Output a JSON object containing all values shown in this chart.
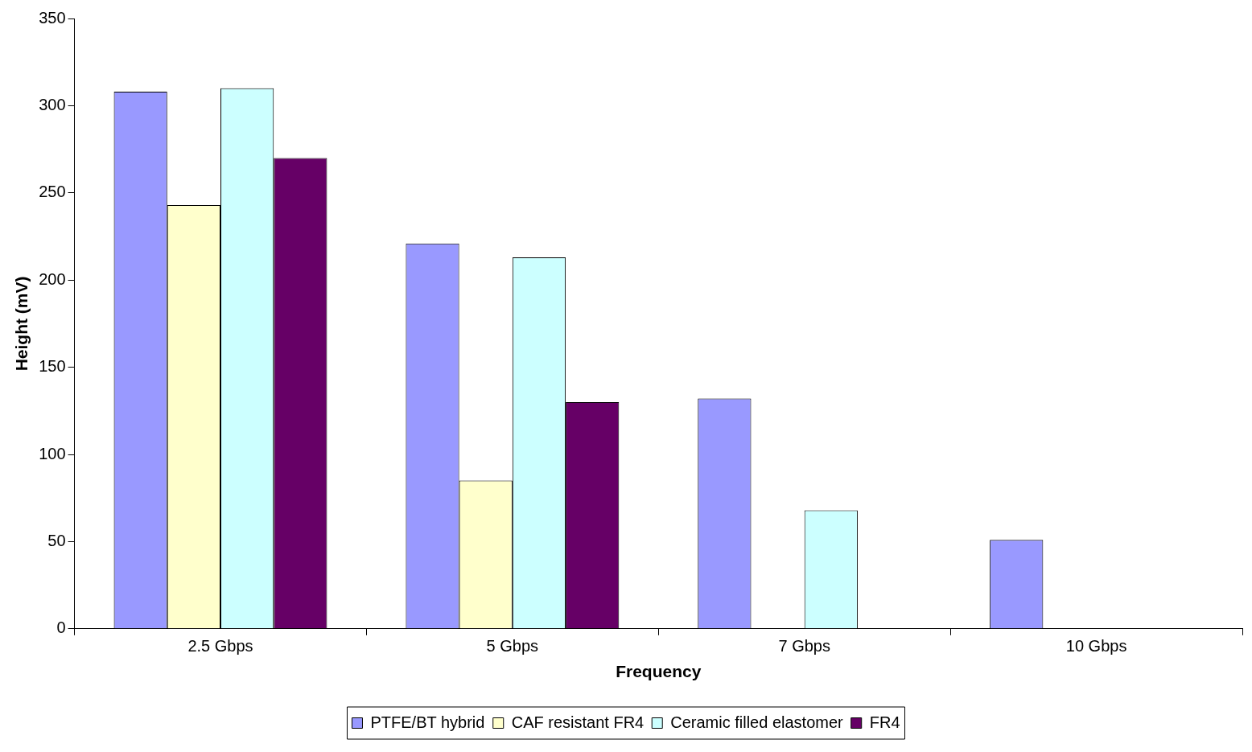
{
  "chart_data": {
    "type": "bar",
    "xlabel": "Frequency",
    "ylabel": "Height (mV)",
    "categories": [
      "2.5 Gbps",
      "5 Gbps",
      "7 Gbps",
      "10 Gbps"
    ],
    "series": [
      {
        "name": "PTFE/BT hybrid",
        "color": "#9999ff",
        "values": [
          308,
          221,
          132,
          51
        ]
      },
      {
        "name": "CAF resistant FR4",
        "color": "#ffffcc",
        "values": [
          243,
          85,
          null,
          null
        ]
      },
      {
        "name": "Ceramic filled elastomer",
        "color": "#ccffff",
        "values": [
          310,
          213,
          68,
          null
        ]
      },
      {
        "name": "FR4",
        "color": "#660066",
        "values": [
          270,
          130,
          null,
          null
        ]
      }
    ],
    "ylim": [
      0,
      350
    ],
    "yticks": [
      0,
      50,
      100,
      150,
      200,
      250,
      300,
      350
    ],
    "grid": false,
    "legend": "bottom"
  }
}
